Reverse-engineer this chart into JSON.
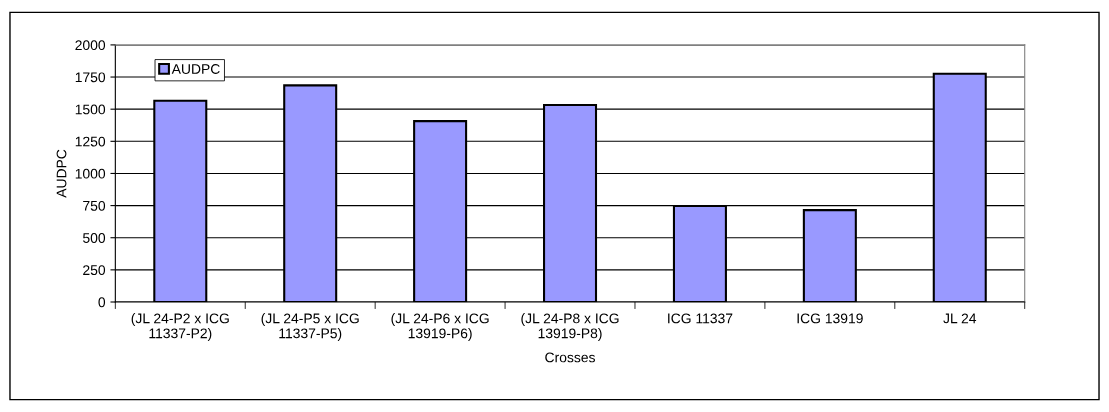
{
  "chart_data": {
    "type": "bar",
    "xlabel": "Crosses",
    "ylabel": "AUDPC",
    "categories": [
      "(JL 24-P2 x ICG\n11337-P2)",
      "(JL 24-P5 x ICG\n11337-P5)",
      "(JL 24-P6 x ICG\n13919-P6)",
      "(JL 24-P8 x ICG\n13919-P8)",
      "ICG 11337",
      "ICG 13919",
      "JL 24"
    ],
    "series": [
      {
        "name": "AUDPC",
        "color": "#9999ff",
        "values": [
          1565,
          1685,
          1407,
          1533,
          747,
          715,
          1776
        ]
      }
    ],
    "ylim": [
      0,
      2000
    ],
    "yticks": [
      0,
      250,
      500,
      750,
      1000,
      1250,
      1500,
      1750,
      2000
    ],
    "grid": "y",
    "legend": "top left"
  }
}
